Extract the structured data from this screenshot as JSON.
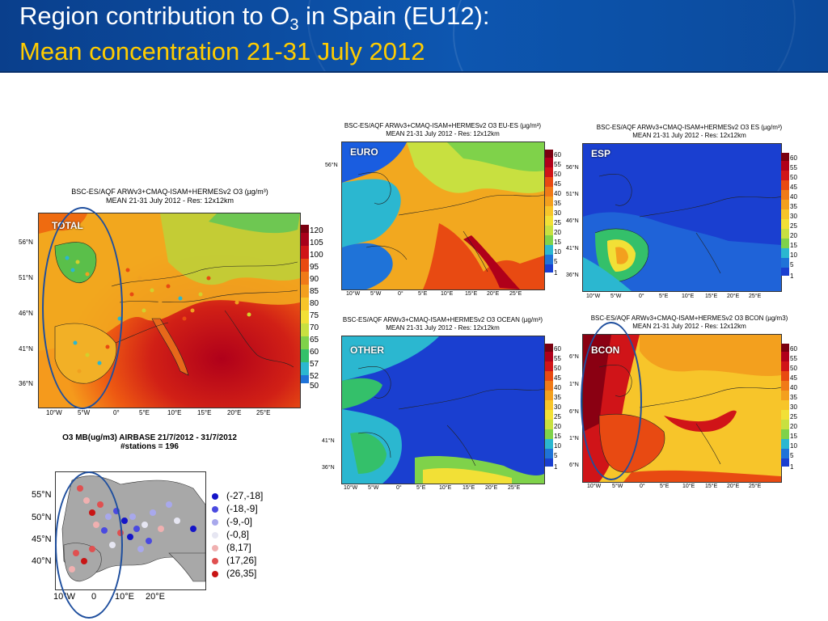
{
  "header": {
    "title_prefix": "Region contribution to O",
    "title_sub": "3",
    "title_suffix": " in Spain (EU12):",
    "subtitle": "Mean concentration 21-31 July 2012"
  },
  "total_panel": {
    "title1": "BSC-ES/AQF ARWv3+CMAQ-ISAM+HERMESv2 O3 (µg/m³)",
    "title2": "MEAN 21-31 July 2012 - Res: 12x12km",
    "label": "TOTAL",
    "colorbar": [
      "120",
      "105",
      "100",
      "95",
      "90",
      "85",
      "80",
      "75",
      "70",
      "65",
      "60",
      "57",
      "52",
      "50"
    ],
    "lat_labels": [
      "56°N",
      "51°N",
      "46°N",
      "41°N",
      "36°N"
    ],
    "lon_labels": [
      "10°W",
      "5°W",
      "0°",
      "5°E",
      "10°E",
      "15°E",
      "20°E",
      "25°E"
    ]
  },
  "euro_panel": {
    "title1": "BSC-ES/AQF ARWv3+CMAQ-ISAM+HERMESv2 O3 EU-ES (µg/m³)",
    "title2": "MEAN 21-31 July 2012 - Res: 12x12km",
    "label": "EURO",
    "lat_labels": [
      "56°N"
    ],
    "lon_labels": [
      "10°W",
      "5°W",
      "0°",
      "5°E",
      "10°E",
      "15°E",
      "20°E",
      "25°E"
    ]
  },
  "esp_panel": {
    "title1": "BSC-ES/AQF ARWv3+CMAQ-ISAM+HERMESv2 O3 ES (µg/m³)",
    "title2": "MEAN 21-31 July 2012 - Res: 12x12km",
    "label": "ESP",
    "lat_labels": [
      "56°N",
      "51°N",
      "46°N",
      "41°N",
      "36°N"
    ],
    "lon_labels": [
      "10°W",
      "5°W",
      "0°",
      "5°E",
      "10°E",
      "15°E",
      "20°E",
      "25°E"
    ]
  },
  "ocean_panel": {
    "title1": "BSC-ES/AQF ARWv3+CMAQ-ISAM+HERMESv2 O3 OCEAN (µg/m³)",
    "title2": "MEAN 21-31 July 2012 - Res: 12x12km",
    "label": "OTHER",
    "lat_labels": [
      "41°N",
      "36°N"
    ],
    "lon_labels": [
      "10°W",
      "5°W",
      "0°",
      "5°E",
      "10°E",
      "15°E",
      "20°E",
      "25°E"
    ]
  },
  "bcon_panel": {
    "title1": "BSC-ES/AQF ARWv3+CMAQ-ISAM+HERMESv2 O3 BCON (µg/m3)",
    "title2": "MEAN 21-31 July 2012 - Res: 12x12km",
    "label": "BCON",
    "lat_labels": [
      "6°N",
      "1°N",
      "6°N",
      "1°N",
      "6°N"
    ],
    "lon_labels": [
      "10°W",
      "5°W",
      "0°",
      "5°E",
      "10°E",
      "15°E",
      "20°E",
      "25°E"
    ]
  },
  "small_colorbar": [
    "60",
    "55",
    "50",
    "45",
    "40",
    "35",
    "30",
    "25",
    "20",
    "15",
    "10",
    "5",
    "1"
  ],
  "stations": {
    "title1": "O3 MB(ug/m3) AIRBASE 21/7/2012 - 31/7/2012",
    "title2": "#stations = 196",
    "lat_labels": [
      "55°N",
      "50°N",
      "45°N",
      "40°N"
    ],
    "lon_labels": [
      "10°W",
      "0",
      "10°E",
      "20°E"
    ],
    "legend": [
      {
        "label": "(-27,-18]",
        "color": "#1414c8"
      },
      {
        "label": "(-18,-9]",
        "color": "#4a4ae0"
      },
      {
        "label": "(-9,-0]",
        "color": "#a8a8ec"
      },
      {
        "label": "(-0,8]",
        "color": "#e6e6f2"
      },
      {
        "label": "(8,17]",
        "color": "#f0b0b0"
      },
      {
        "label": "(17,26]",
        "color": "#e05050"
      },
      {
        "label": "(26,35]",
        "color": "#c81414"
      }
    ]
  }
}
